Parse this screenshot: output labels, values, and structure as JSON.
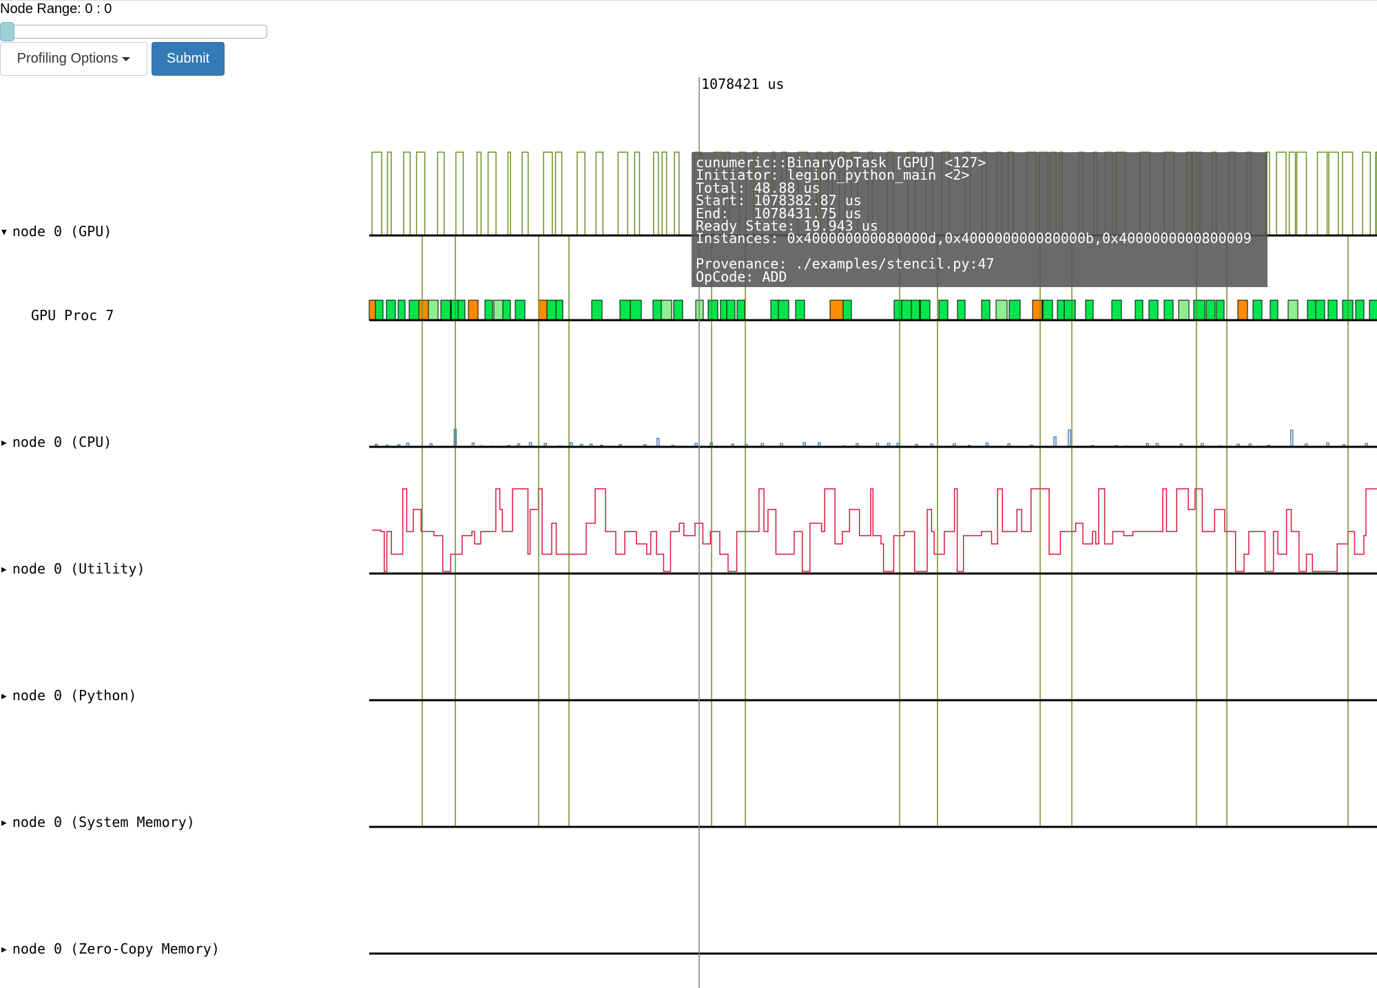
{
  "controls": {
    "node_range_label": "Node Range: 0 : 0",
    "slider_value": 0,
    "profiling_options_label": "Profiling Options",
    "submit_label": "Submit"
  },
  "cursor": {
    "time_label": "1078421 us"
  },
  "rows": [
    {
      "label": "node 0 (GPU)",
      "expander": "▼",
      "kind": "utilization"
    },
    {
      "label": "GPU Proc 7",
      "expander": "",
      "kind": "tasks"
    },
    {
      "label": "node 0 (CPU)",
      "expander": "▶",
      "kind": "utilization"
    },
    {
      "label": "node 0 (Utility)",
      "expander": "▶",
      "kind": "utilization"
    },
    {
      "label": "node 0 (Python)",
      "expander": "▶",
      "kind": "utilization"
    },
    {
      "label": "node 0 (System Memory)",
      "expander": "▶",
      "kind": "memory"
    },
    {
      "label": "node 0 (Zero-Copy Memory)",
      "expander": "▶",
      "kind": "memory"
    }
  ],
  "tooltip": {
    "lines": [
      "cunumeric::BinaryOpTask [GPU] <127>",
      "Initiator: legion_python_main <2>",
      "Total: 48.88 us",
      "Start: 1078382.87 us",
      "End:   1078431.75 us",
      "Ready State: 19.943 us",
      "Instances: 0x400000000080000d,0x400000000080000b,0x4000000000800009",
      "",
      "Provenance: ./examples/stencil.py:47",
      "OpCode: ADD"
    ]
  },
  "colors": {
    "gpu_util": "#6b8e23",
    "task_green": "#00e64d",
    "task_light_green": "#90ee90",
    "task_orange": "#ff8c00",
    "cpu_util": "#4682b4",
    "utility_util": "#dc143c",
    "dependency_line": "#6b8e23",
    "cursor_line": "#808080",
    "button_primary": "#337ab7"
  }
}
